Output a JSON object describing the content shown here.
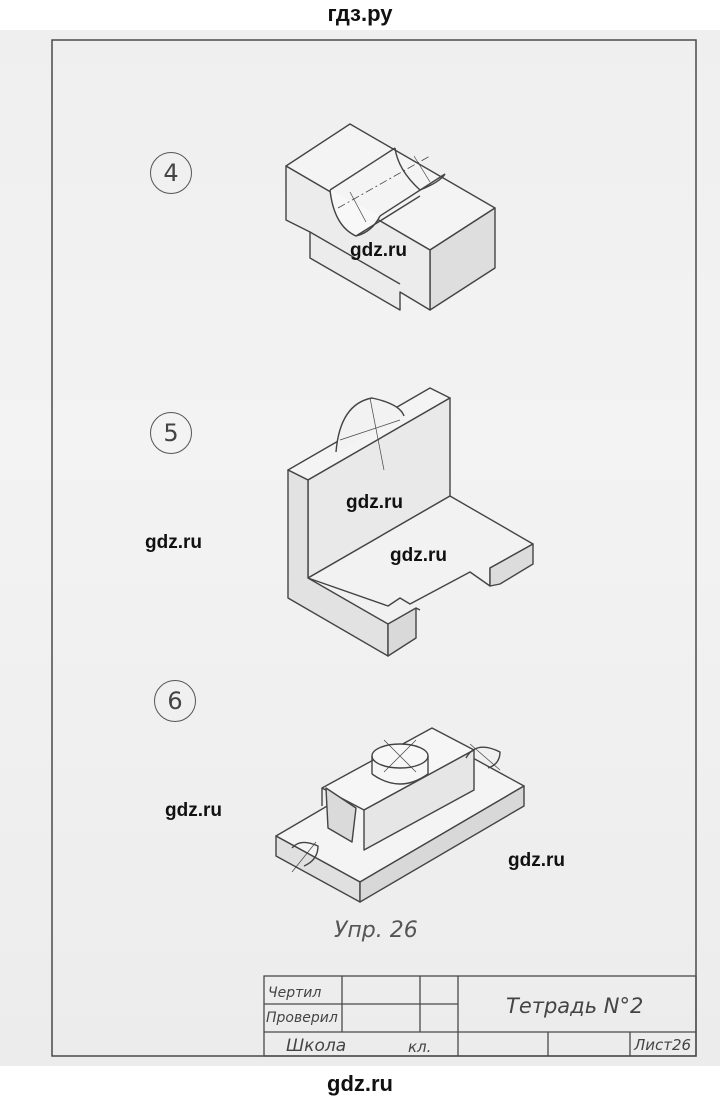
{
  "site": {
    "header": "гдз.ру",
    "footer": "gdz.ru"
  },
  "figures": [
    {
      "number": "4"
    },
    {
      "number": "5"
    },
    {
      "number": "6"
    }
  ],
  "watermarks": [
    "gdz.ru",
    "gdz.ru",
    "gdz.ru",
    "gdz.ru",
    "gdz.ru",
    "gdz.ru"
  ],
  "caption": "Упр. 26",
  "title_block": {
    "drew_label": "Чертил",
    "checked_label": "Проверил",
    "school_label": "Школа",
    "class_label": "кл.",
    "title": "Тетрадь N°2",
    "sheet": "Лист26"
  }
}
